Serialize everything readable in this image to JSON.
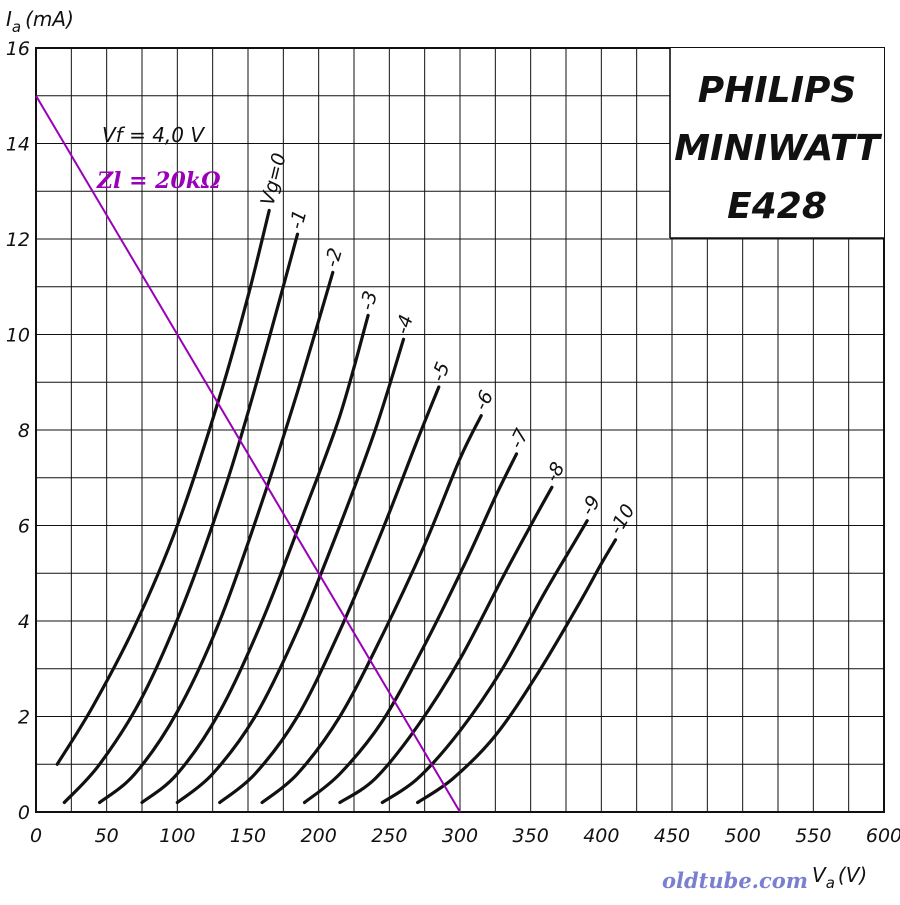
{
  "chart_data": {
    "type": "line",
    "xlabel": "V",
    "xlabel_sub": "a",
    "xlabel_unit": "(V)",
    "ylabel": "I",
    "ylabel_sub": "a",
    "ylabel_unit": "(mA)",
    "xlim": [
      0,
      600
    ],
    "ylim": [
      0,
      16
    ],
    "x_ticks": [
      "0",
      "50",
      "100",
      "150",
      "200",
      "250",
      "300",
      "350",
      "400",
      "450",
      "500",
      "550",
      "600"
    ],
    "y_ticks": [
      "0",
      "2",
      "4",
      "6",
      "8",
      "10",
      "12",
      "14",
      "16"
    ],
    "grid": true,
    "brand_lines": [
      "PHILIPS",
      "MINIWATT",
      "E428"
    ],
    "annotation_vf": "Vf = 4,0 V",
    "load_line": {
      "label": "Zl = 20kΩ",
      "color": "#9900b8",
      "points": [
        [
          0,
          15
        ],
        [
          300,
          0
        ]
      ]
    },
    "series": [
      {
        "label": "Vg=0",
        "points": [
          [
            15,
            1.0
          ],
          [
            40,
            2.2
          ],
          [
            70,
            3.9
          ],
          [
            100,
            6.0
          ],
          [
            130,
            8.7
          ],
          [
            150,
            10.8
          ],
          [
            165,
            12.6
          ]
        ]
      },
      {
        "label": "-1",
        "points": [
          [
            20,
            0.2
          ],
          [
            45,
            1.0
          ],
          [
            75,
            2.4
          ],
          [
            105,
            4.4
          ],
          [
            135,
            6.9
          ],
          [
            160,
            9.4
          ],
          [
            185,
            12.1
          ]
        ]
      },
      {
        "label": "-2",
        "points": [
          [
            45,
            0.2
          ],
          [
            70,
            0.8
          ],
          [
            100,
            2.1
          ],
          [
            130,
            4.0
          ],
          [
            160,
            6.5
          ],
          [
            185,
            8.8
          ],
          [
            210,
            11.3
          ]
        ]
      },
      {
        "label": "-3",
        "points": [
          [
            75,
            0.2
          ],
          [
            100,
            0.8
          ],
          [
            130,
            2.1
          ],
          [
            160,
            4.0
          ],
          [
            190,
            6.3
          ],
          [
            215,
            8.3
          ],
          [
            235,
            10.4
          ]
        ]
      },
      {
        "label": "-4",
        "points": [
          [
            100,
            0.2
          ],
          [
            125,
            0.8
          ],
          [
            155,
            2.0
          ],
          [
            185,
            3.8
          ],
          [
            215,
            6.0
          ],
          [
            240,
            8.0
          ],
          [
            260,
            9.9
          ]
        ]
      },
      {
        "label": "-5",
        "points": [
          [
            130,
            0.2
          ],
          [
            155,
            0.8
          ],
          [
            185,
            2.0
          ],
          [
            215,
            3.8
          ],
          [
            245,
            5.9
          ],
          [
            270,
            7.8
          ],
          [
            285,
            8.9
          ]
        ]
      },
      {
        "label": "-6",
        "points": [
          [
            160,
            0.2
          ],
          [
            185,
            0.8
          ],
          [
            215,
            2.0
          ],
          [
            245,
            3.7
          ],
          [
            275,
            5.6
          ],
          [
            300,
            7.4
          ],
          [
            315,
            8.3
          ]
        ]
      },
      {
        "label": "-7",
        "points": [
          [
            190,
            0.2
          ],
          [
            215,
            0.8
          ],
          [
            245,
            1.9
          ],
          [
            275,
            3.5
          ],
          [
            305,
            5.3
          ],
          [
            325,
            6.6
          ],
          [
            340,
            7.5
          ]
        ]
      },
      {
        "label": "-8",
        "points": [
          [
            215,
            0.2
          ],
          [
            240,
            0.7
          ],
          [
            270,
            1.8
          ],
          [
            300,
            3.2
          ],
          [
            330,
            4.9
          ],
          [
            350,
            6.0
          ],
          [
            365,
            6.8
          ]
        ]
      },
      {
        "label": "-9",
        "points": [
          [
            245,
            0.2
          ],
          [
            270,
            0.7
          ],
          [
            300,
            1.7
          ],
          [
            330,
            3.0
          ],
          [
            360,
            4.6
          ],
          [
            380,
            5.6
          ],
          [
            390,
            6.1
          ]
        ]
      },
      {
        "label": "-10",
        "points": [
          [
            270,
            0.2
          ],
          [
            295,
            0.7
          ],
          [
            325,
            1.6
          ],
          [
            355,
            2.9
          ],
          [
            385,
            4.4
          ],
          [
            400,
            5.2
          ],
          [
            410,
            5.7
          ]
        ]
      }
    ]
  },
  "watermark": "oldtube.com"
}
